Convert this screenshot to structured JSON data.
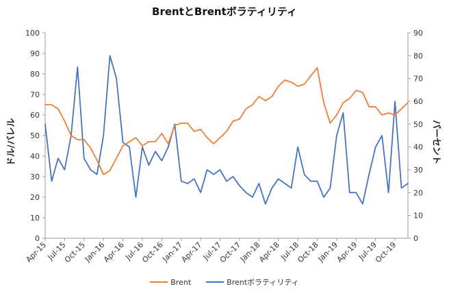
{
  "chart_data": {
    "type": "line",
    "title": "BrentとBrentボラティリティ",
    "ylabel_left": "ドル/バレル",
    "ylabel_right": "パーセント",
    "ylim_left": [
      0,
      100
    ],
    "ylim_right": [
      0,
      90
    ],
    "yticks_left": [
      0,
      10,
      20,
      30,
      40,
      50,
      60,
      70,
      80,
      90,
      100
    ],
    "yticks_right": [
      0,
      10,
      20,
      30,
      40,
      50,
      60,
      70,
      80,
      90
    ],
    "x_range": [
      "2015-04",
      "2019-12"
    ],
    "xtick_labels": [
      "Apr-15",
      "Jul-15",
      "Oct-15",
      "Jan-16",
      "Apr-16",
      "Jul-16",
      "Oct-16",
      "Jan-17",
      "Apr-17",
      "Jul-17",
      "Oct-17",
      "Jan-18",
      "Apr-18",
      "Jul-18",
      "Oct-18",
      "Jan-19",
      "Apr-19",
      "Jul-19",
      "Oct-19"
    ],
    "legend_position": "bottom",
    "grid": false,
    "colors": {
      "brent": "#ED7D31",
      "volatility": "#4472C4"
    },
    "series": [
      {
        "name": "Brent",
        "axis": "left",
        "x": [
          "2015-04",
          "2015-05",
          "2015-06",
          "2015-07",
          "2015-08",
          "2015-09",
          "2015-10",
          "2015-11",
          "2015-12",
          "2016-01",
          "2016-02",
          "2016-03",
          "2016-04",
          "2016-05",
          "2016-06",
          "2016-07",
          "2016-08",
          "2016-09",
          "2016-10",
          "2016-11",
          "2016-12",
          "2017-01",
          "2017-02",
          "2017-03",
          "2017-04",
          "2017-05",
          "2017-06",
          "2017-07",
          "2017-08",
          "2017-09",
          "2017-10",
          "2017-11",
          "2017-12",
          "2018-01",
          "2018-02",
          "2018-03",
          "2018-04",
          "2018-05",
          "2018-06",
          "2018-07",
          "2018-08",
          "2018-09",
          "2018-10",
          "2018-11",
          "2018-12",
          "2019-01",
          "2019-02",
          "2019-03",
          "2019-04",
          "2019-05",
          "2019-06",
          "2019-07",
          "2019-08",
          "2019-09",
          "2019-10",
          "2019-11",
          "2019-12"
        ],
        "values": [
          65,
          65,
          63,
          57,
          50,
          48,
          48,
          44,
          38,
          31,
          33,
          39,
          45,
          47,
          49,
          45,
          47,
          47,
          51,
          46,
          55,
          56,
          56,
          52,
          53,
          49,
          46,
          49,
          52,
          57,
          58,
          63,
          65,
          69,
          67,
          69,
          74,
          77,
          76,
          74,
          75,
          79,
          83,
          66,
          56,
          60,
          66,
          68,
          72,
          71,
          64,
          64,
          60,
          61,
          60,
          63,
          66
        ]
      },
      {
        "name": "Brentボラティリティ",
        "axis": "right",
        "x": [
          "2015-04",
          "2015-05",
          "2015-06",
          "2015-07",
          "2015-08",
          "2015-09",
          "2015-10",
          "2015-11",
          "2015-12",
          "2016-01",
          "2016-02",
          "2016-03",
          "2016-04",
          "2016-05",
          "2016-06",
          "2016-07",
          "2016-08",
          "2016-09",
          "2016-10",
          "2016-11",
          "2016-12",
          "2017-01",
          "2017-02",
          "2017-03",
          "2017-04",
          "2017-05",
          "2017-06",
          "2017-07",
          "2017-08",
          "2017-09",
          "2017-10",
          "2017-11",
          "2017-12",
          "2018-01",
          "2018-02",
          "2018-03",
          "2018-04",
          "2018-05",
          "2018-06",
          "2018-07",
          "2018-08",
          "2018-09",
          "2018-10",
          "2018-11",
          "2018-12",
          "2019-01",
          "2019-02",
          "2019-03",
          "2019-04",
          "2019-05",
          "2019-06",
          "2019-07",
          "2019-08",
          "2019-09",
          "2019-10",
          "2019-11",
          "2019-12"
        ],
        "values": [
          50,
          25,
          35,
          30,
          45,
          75,
          35,
          30,
          28,
          45,
          80,
          70,
          42,
          40,
          18,
          40,
          32,
          38,
          34,
          40,
          50,
          25,
          24,
          26,
          20,
          30,
          28,
          30,
          25,
          27,
          23,
          20,
          18,
          24,
          15,
          22,
          26,
          24,
          22,
          40,
          28,
          25,
          25,
          18,
          22,
          45,
          55,
          20,
          20,
          15,
          28,
          40,
          45,
          20,
          60,
          22,
          24
        ]
      }
    ]
  }
}
